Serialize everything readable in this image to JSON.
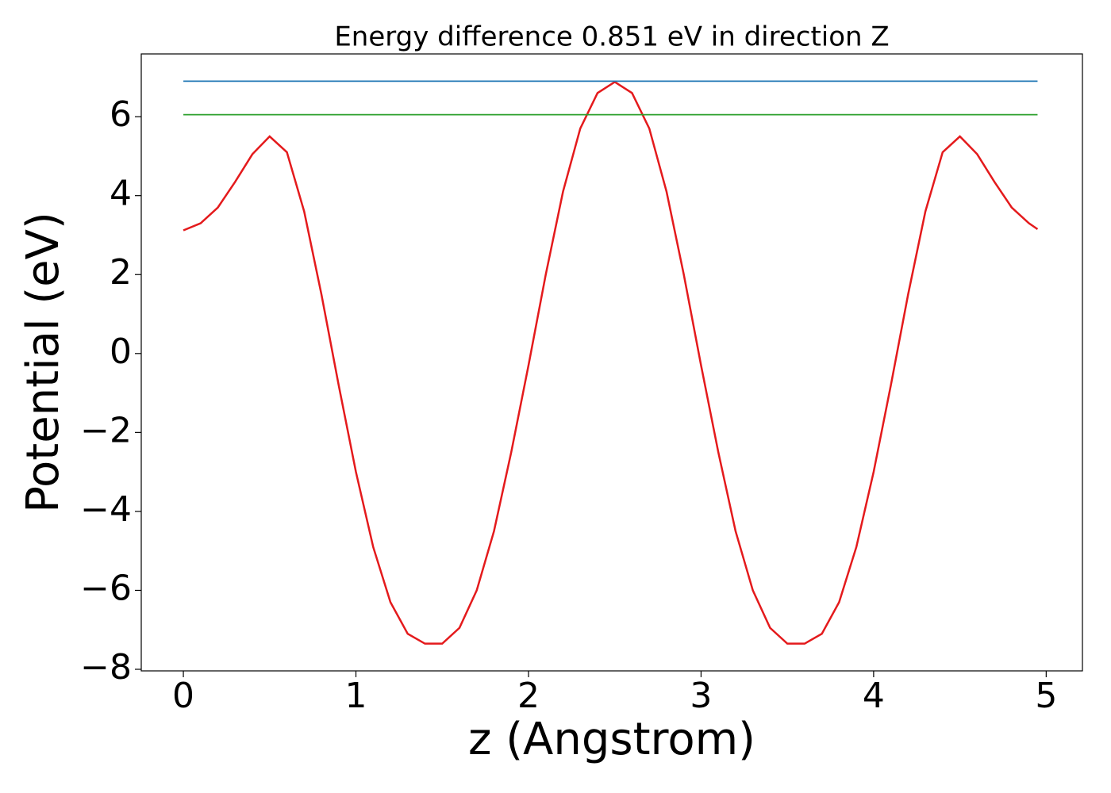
{
  "chart_data": {
    "type": "line",
    "title": "Energy difference 0.851 eV in direction Z",
    "xlabel": "z (Angstrom)",
    "ylabel": "Potential (eV)",
    "xlim": [
      -0.244,
      5.21
    ],
    "ylim": [
      -8.04,
      7.59
    ],
    "xticks": [
      0,
      1,
      2,
      3,
      4,
      5
    ],
    "yticks": [
      {
        "value": -8,
        "label": "−8"
      },
      {
        "value": -6,
        "label": "−6"
      },
      {
        "value": -4,
        "label": "−4"
      },
      {
        "value": -2,
        "label": "−2"
      },
      0,
      2,
      4,
      6
    ],
    "grid": false,
    "series": [
      {
        "color": "#e41a1c",
        "x": [
          0,
          0.1,
          0.2,
          0.3,
          0.4,
          0.5,
          0.6,
          0.7,
          0.8,
          0.9,
          1.0,
          1.1,
          1.2,
          1.3,
          1.4,
          1.5,
          1.6,
          1.7,
          1.8,
          1.9,
          2.0,
          2.1,
          2.2,
          2.3,
          2.4,
          2.5,
          2.6,
          2.7,
          2.8,
          2.9,
          3.0,
          3.1,
          3.2,
          3.3,
          3.4,
          3.5,
          3.6,
          3.7,
          3.8,
          3.9,
          4.0,
          4.1,
          4.2,
          4.3,
          4.4,
          4.5,
          4.6,
          4.7,
          4.8,
          4.9,
          4.95
        ],
        "values": [
          3.12,
          3.3,
          3.7,
          4.35,
          5.05,
          5.5,
          5.1,
          3.6,
          1.5,
          -0.8,
          -3.0,
          -4.9,
          -6.3,
          -7.1,
          -7.35,
          -7.35,
          -6.95,
          -6.0,
          -4.5,
          -2.5,
          -0.3,
          2.0,
          4.1,
          5.7,
          6.6,
          6.88,
          6.6,
          5.7,
          4.1,
          2.0,
          -0.3,
          -2.5,
          -4.5,
          -6.0,
          -6.95,
          -7.35,
          -7.35,
          -7.1,
          -6.3,
          -4.9,
          -3.0,
          -0.8,
          1.5,
          3.6,
          5.1,
          5.5,
          5.05,
          4.35,
          3.7,
          3.3,
          3.15
        ]
      },
      {
        "color": "#1f77b4",
        "x": [
          0,
          4.95
        ],
        "values": [
          6.9,
          6.9
        ]
      },
      {
        "color": "#2ca02c",
        "x": [
          0,
          4.95
        ],
        "values": [
          6.05,
          6.05
        ]
      }
    ]
  }
}
